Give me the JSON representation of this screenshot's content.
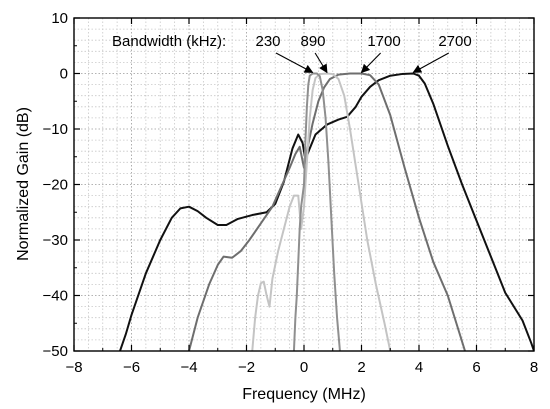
{
  "chart_data": {
    "type": "line",
    "title": "",
    "xlabel": "Frequency (MHz)",
    "ylabel": "Normalized Gain (dB)",
    "xlim": [
      -8,
      8
    ],
    "ylim": [
      -50,
      10
    ],
    "x_ticks": [
      -8,
      -6,
      -4,
      -2,
      0,
      2,
      4,
      6,
      8
    ],
    "x_tick_labels": [
      "−8",
      "−6",
      "−4",
      "−2",
      "0",
      "2",
      "4",
      "6",
      "8"
    ],
    "y_ticks": [
      -50,
      -40,
      -30,
      -20,
      -10,
      0,
      10
    ],
    "y_tick_labels": [
      "−50",
      "−40",
      "−30",
      "−20",
      "−10",
      "0",
      "10"
    ],
    "grid": true,
    "grid_style": "dotted, minor x every 0.5 MHz, minor y every 2 dB",
    "legend": "none",
    "annotation_label": "Bandwidth (kHz):",
    "series": [
      {
        "name": "2700",
        "color": "#111111",
        "arrow_tip": [
          3.8,
          0
        ],
        "points": [
          [
            -6.4,
            -50
          ],
          [
            -6.2,
            -47
          ],
          [
            -6.0,
            -43.5
          ],
          [
            -5.5,
            -36
          ],
          [
            -5.0,
            -30
          ],
          [
            -4.6,
            -26
          ],
          [
            -4.3,
            -24.3
          ],
          [
            -4.0,
            -24
          ],
          [
            -3.7,
            -24.8
          ],
          [
            -3.4,
            -26
          ],
          [
            -3.0,
            -27.3
          ],
          [
            -2.7,
            -27.3
          ],
          [
            -2.3,
            -26.2
          ],
          [
            -1.8,
            -25.5
          ],
          [
            -1.3,
            -25
          ],
          [
            -1.0,
            -23.5
          ],
          [
            -0.7,
            -19.5
          ],
          [
            -0.4,
            -13.5
          ],
          [
            -0.2,
            -11.0
          ],
          [
            -0.05,
            -12.5
          ],
          [
            0.05,
            -15.5
          ],
          [
            0.2,
            -13.5
          ],
          [
            0.4,
            -11.0
          ],
          [
            0.8,
            -9.2
          ],
          [
            1.2,
            -8.3
          ],
          [
            1.5,
            -7.8
          ],
          [
            1.8,
            -6.0
          ],
          [
            2.0,
            -4.2
          ],
          [
            2.3,
            -2.4
          ],
          [
            2.6,
            -1.2
          ],
          [
            3.0,
            -0.4
          ],
          [
            3.4,
            -0.1
          ],
          [
            3.8,
            0
          ],
          [
            4.0,
            -0.4
          ],
          [
            4.2,
            -1.8
          ],
          [
            4.5,
            -5.5
          ],
          [
            5.0,
            -13
          ],
          [
            5.5,
            -20
          ],
          [
            6.0,
            -26.5
          ],
          [
            6.5,
            -33
          ],
          [
            7.0,
            -39.5
          ],
          [
            7.3,
            -42
          ],
          [
            7.6,
            -44.5
          ],
          [
            7.9,
            -48.5
          ],
          [
            8.0,
            -50
          ]
        ]
      },
      {
        "name": "1700",
        "color": "#6e6e6e",
        "arrow_tip": [
          2.0,
          0
        ],
        "points": [
          [
            -4.0,
            -50
          ],
          [
            -3.7,
            -44
          ],
          [
            -3.3,
            -38
          ],
          [
            -3.0,
            -34.5
          ],
          [
            -2.8,
            -33
          ],
          [
            -2.5,
            -33.2
          ],
          [
            -2.2,
            -32
          ],
          [
            -1.9,
            -30
          ],
          [
            -1.5,
            -27
          ],
          [
            -1.1,
            -24
          ],
          [
            -0.8,
            -20.5
          ],
          [
            -0.5,
            -17
          ],
          [
            -0.3,
            -14.5
          ],
          [
            -0.15,
            -13.2
          ],
          [
            0.0,
            -17
          ],
          [
            0.1,
            -14
          ],
          [
            0.3,
            -9
          ],
          [
            0.5,
            -5
          ],
          [
            0.7,
            -2.5
          ],
          [
            0.9,
            -1
          ],
          [
            1.2,
            -0.2
          ],
          [
            1.6,
            0
          ],
          [
            2.0,
            0
          ],
          [
            2.3,
            -0.3
          ],
          [
            2.6,
            -2
          ],
          [
            3.0,
            -7.5
          ],
          [
            3.5,
            -17
          ],
          [
            4.0,
            -26
          ],
          [
            4.5,
            -34
          ],
          [
            5.0,
            -40
          ],
          [
            5.3,
            -45
          ],
          [
            5.6,
            -50
          ]
        ]
      },
      {
        "name": "890",
        "color": "#c4c4c4",
        "arrow_tip": [
          0.8,
          0
        ],
        "points": [
          [
            -1.8,
            -50
          ],
          [
            -1.7,
            -44
          ],
          [
            -1.6,
            -40
          ],
          [
            -1.5,
            -37.8
          ],
          [
            -1.4,
            -37.5
          ],
          [
            -1.3,
            -40
          ],
          [
            -1.2,
            -42
          ],
          [
            -1.1,
            -37
          ],
          [
            -0.9,
            -32
          ],
          [
            -0.7,
            -28
          ],
          [
            -0.5,
            -24
          ],
          [
            -0.35,
            -22
          ],
          [
            -0.2,
            -22
          ],
          [
            -0.1,
            -28
          ],
          [
            0.0,
            -24
          ],
          [
            0.1,
            -16
          ],
          [
            0.2,
            -8
          ],
          [
            0.3,
            -3
          ],
          [
            0.4,
            -0.8
          ],
          [
            0.55,
            -0.1
          ],
          [
            0.8,
            0
          ],
          [
            1.0,
            -0.1
          ],
          [
            1.2,
            -1
          ],
          [
            1.4,
            -4
          ],
          [
            1.6,
            -10
          ],
          [
            1.9,
            -20
          ],
          [
            2.2,
            -30
          ],
          [
            2.5,
            -38
          ],
          [
            2.8,
            -45
          ],
          [
            3.0,
            -50
          ]
        ]
      },
      {
        "name": "230",
        "color": "#8f8f8f",
        "arrow_tip": [
          0.3,
          0
        ],
        "points": [
          [
            -0.35,
            -50
          ],
          [
            -0.3,
            -44
          ],
          [
            -0.25,
            -40
          ],
          [
            -0.2,
            -34
          ],
          [
            -0.15,
            -28
          ],
          [
            -0.1,
            -24
          ],
          [
            -0.05,
            -22
          ],
          [
            0.0,
            -20
          ],
          [
            0.05,
            -12
          ],
          [
            0.1,
            -6
          ],
          [
            0.15,
            -2
          ],
          [
            0.2,
            -0.4
          ],
          [
            0.3,
            0
          ],
          [
            0.45,
            0
          ],
          [
            0.55,
            -0.5
          ],
          [
            0.65,
            -3
          ],
          [
            0.75,
            -8
          ],
          [
            0.85,
            -16
          ],
          [
            0.95,
            -26
          ],
          [
            1.05,
            -36
          ],
          [
            1.15,
            -44
          ],
          [
            1.25,
            -50
          ]
        ]
      }
    ]
  }
}
